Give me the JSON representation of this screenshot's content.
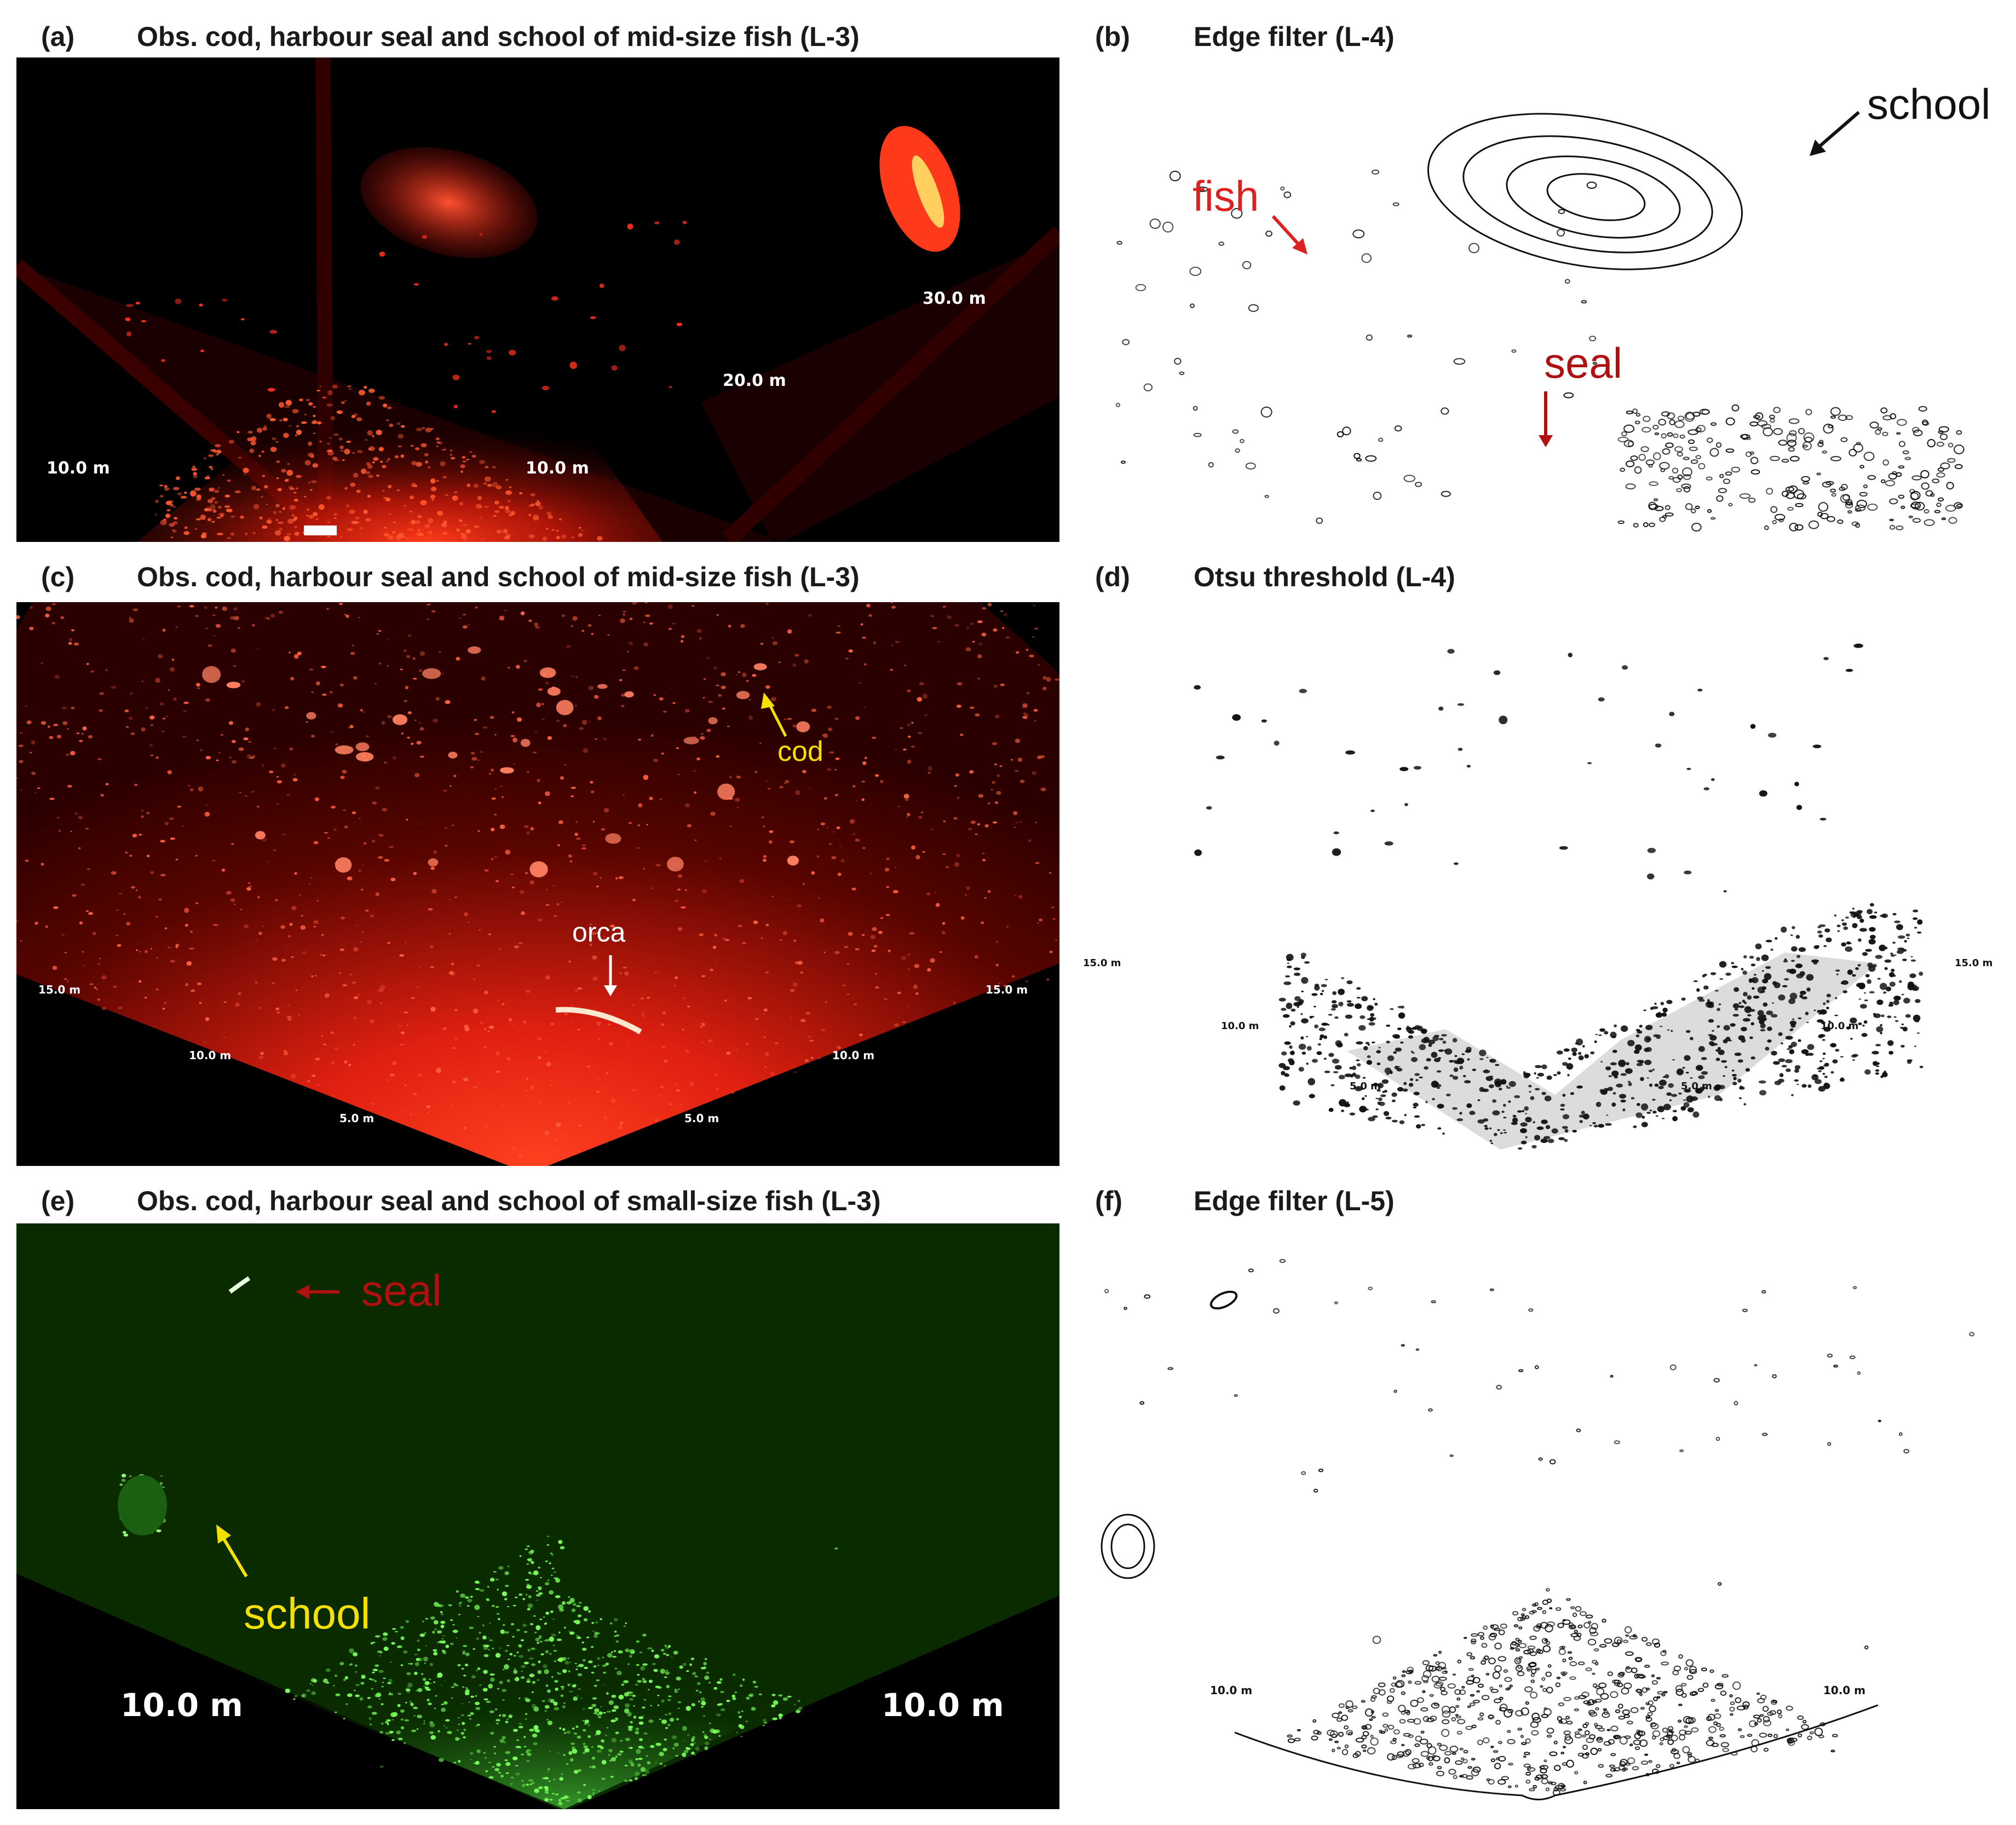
{
  "panels": {
    "a": {
      "label": "(a)",
      "title": "Obs. cod, harbour seal and school of mid-size fish (L-3)",
      "scale_labels": [
        "10.0 m",
        "10.0 m",
        "20.0 m",
        "30.0 m"
      ]
    },
    "b": {
      "label": "(b)",
      "title": "Edge filter (L-4)",
      "annotations": {
        "fish": "fish",
        "school": "school",
        "seal": "seal"
      }
    },
    "c": {
      "label": "(c)",
      "title": "Obs. cod, harbour seal and school of mid-size fish (L-3)",
      "annotations": {
        "cod": "cod",
        "orca": "orca"
      },
      "scale_labels": [
        "15.0 m",
        "15.0 m",
        "10.0 m",
        "10.0 m",
        "5.0 m",
        "5.0 m"
      ]
    },
    "d": {
      "label": "(d)",
      "title": "Otsu threshold (L-4)",
      "scale_labels": [
        "15.0 m",
        "15.0 m",
        "10.0 m",
        "10.0 m",
        "5.0 m",
        "5.0 m"
      ]
    },
    "e": {
      "label": "(e)",
      "title": "Obs. cod, harbour seal and school of small-size fish (L-3)",
      "annotations": {
        "seal": "seal",
        "school": "school"
      },
      "scale_labels": [
        "10.0 m",
        "10.0 m"
      ]
    },
    "f": {
      "label": "(f)",
      "title": "Edge filter (L-5)",
      "scale_labels": [
        "10.0 m",
        "10.0 m"
      ]
    }
  },
  "colors": {
    "sonar_red": "#ff2a1a",
    "sonar_green": "#5cff4a",
    "annotation_red": "#e02020",
    "annotation_darkred": "#b01010",
    "annotation_yellow": "#f5e000",
    "annotation_black": "#111111"
  }
}
